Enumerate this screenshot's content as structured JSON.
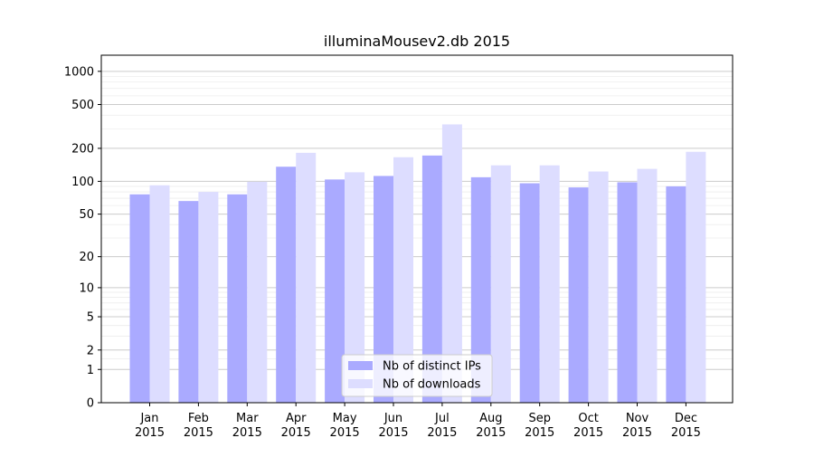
{
  "chart_data": {
    "type": "bar",
    "title": "illuminaMousev2.db 2015",
    "xlabel": "",
    "ylabel": "",
    "yscale": "log(1+y)",
    "ylim": [
      0,
      1400
    ],
    "y_ticks": [
      0,
      1,
      2,
      5,
      10,
      20,
      50,
      100,
      200,
      500,
      1000
    ],
    "grid": true,
    "legend_position": "bottom-center",
    "categories": [
      [
        "Jan",
        "2015"
      ],
      [
        "Feb",
        "2015"
      ],
      [
        "Mar",
        "2015"
      ],
      [
        "Apr",
        "2015"
      ],
      [
        "May",
        "2015"
      ],
      [
        "Jun",
        "2015"
      ],
      [
        "Jul",
        "2015"
      ],
      [
        "Aug",
        "2015"
      ],
      [
        "Sep",
        "2015"
      ],
      [
        "Oct",
        "2015"
      ],
      [
        "Nov",
        "2015"
      ],
      [
        "Dec",
        "2015"
      ]
    ],
    "series": [
      {
        "name": "Nb of distinct IPs",
        "color": "#aaaaff",
        "values": [
          76,
          66,
          76,
          136,
          104,
          112,
          172,
          109,
          96,
          88,
          98,
          90
        ]
      },
      {
        "name": "Nb of downloads",
        "color": "#ddddff",
        "values": [
          92,
          80,
          99,
          182,
          121,
          166,
          330,
          140,
          140,
          123,
          130,
          186
        ]
      }
    ]
  }
}
